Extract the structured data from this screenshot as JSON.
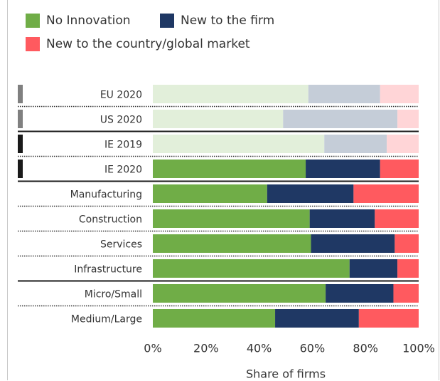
{
  "legend": {
    "items": [
      {
        "label": "No Innovation",
        "color": "#70ad47"
      },
      {
        "label": "New to the firm",
        "color": "#1f3864"
      },
      {
        "label": "New to the country/global market",
        "color": "#ff5a5f"
      }
    ]
  },
  "chart_data": {
    "type": "bar",
    "orientation": "horizontal",
    "stacked": true,
    "categories": [
      "EU 2020",
      "US 2020",
      "IE 2019",
      "IE 2020",
      "Manufacturing",
      "Construction",
      "Services",
      "Infrastructure",
      "Micro/Small",
      "Medium/Large"
    ],
    "series": [
      {
        "name": "No Innovation",
        "color": "#70ad47",
        "faded_color": "#e2efda",
        "values": [
          58.5,
          49.0,
          64.5,
          57.5,
          43.0,
          59.0,
          59.5,
          74.0,
          65.0,
          46.0
        ]
      },
      {
        "name": "New to the firm",
        "color": "#1f3864",
        "faded_color": "#c5cdd8",
        "values": [
          27.0,
          43.0,
          23.5,
          28.0,
          32.5,
          24.5,
          31.5,
          18.0,
          25.5,
          31.5
        ]
      },
      {
        "name": "New to the country/global market",
        "color": "#ff5a5f",
        "faded_color": "#ffd5d7",
        "values": [
          14.5,
          8.0,
          12.0,
          14.5,
          24.5,
          16.5,
          9.0,
          8.0,
          9.5,
          22.5
        ]
      }
    ],
    "faded_categories": [
      "EU 2020",
      "US 2020",
      "IE 2019"
    ],
    "marker_colors": [
      "#808080",
      "#808080",
      "#1a1a1a",
      "#1a1a1a",
      "",
      "",
      "",
      "",
      "",
      ""
    ],
    "solid_separators_after": [
      "US 2020",
      "IE 2020",
      "Infrastructure"
    ],
    "xticks": [
      "0%",
      "20%",
      "40%",
      "60%",
      "80%",
      "100%"
    ],
    "xlim": [
      0,
      100
    ],
    "xlabel": "Share of firms",
    "grid": false,
    "legend_position": "top-left"
  }
}
